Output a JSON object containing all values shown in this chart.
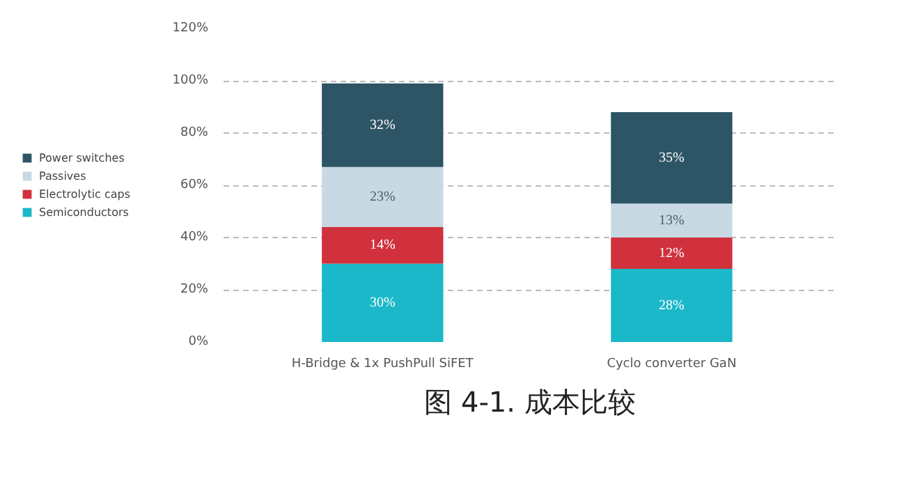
{
  "chart_data": {
    "type": "bar",
    "stacked": true,
    "title": "图 4-1. 成本比较",
    "categories": [
      "H-Bridge & 1x PushPull SiFET",
      "Cyclo converter GaN"
    ],
    "series": [
      {
        "name": "Semiconductors",
        "color": "#1ab8c8",
        "values": [
          30,
          28
        ],
        "value_labels": [
          "30%",
          "28%"
        ]
      },
      {
        "name": "Electrolytic caps",
        "color": "#d0313c",
        "values": [
          14,
          12
        ],
        "value_labels": [
          "14%",
          "12%"
        ]
      },
      {
        "name": "Passives",
        "color": "#c8d9e3",
        "values": [
          23,
          13
        ],
        "value_labels": [
          "23%",
          "13%"
        ]
      },
      {
        "name": "Power switches",
        "color": "#2d5566",
        "values": [
          32,
          35
        ],
        "value_labels": [
          "32%",
          "35%"
        ]
      }
    ],
    "ylim": [
      0,
      120
    ],
    "yticks": [
      {
        "value": 0,
        "label": "0%"
      },
      {
        "value": 20,
        "label": "20%"
      },
      {
        "value": 40,
        "label": "40%"
      },
      {
        "value": 60,
        "label": "60%"
      },
      {
        "value": 80,
        "label": "80%"
      },
      {
        "value": 100,
        "label": "100%"
      },
      {
        "value": 120,
        "label": "120%"
      }
    ],
    "grid": "y",
    "legend": "left"
  }
}
